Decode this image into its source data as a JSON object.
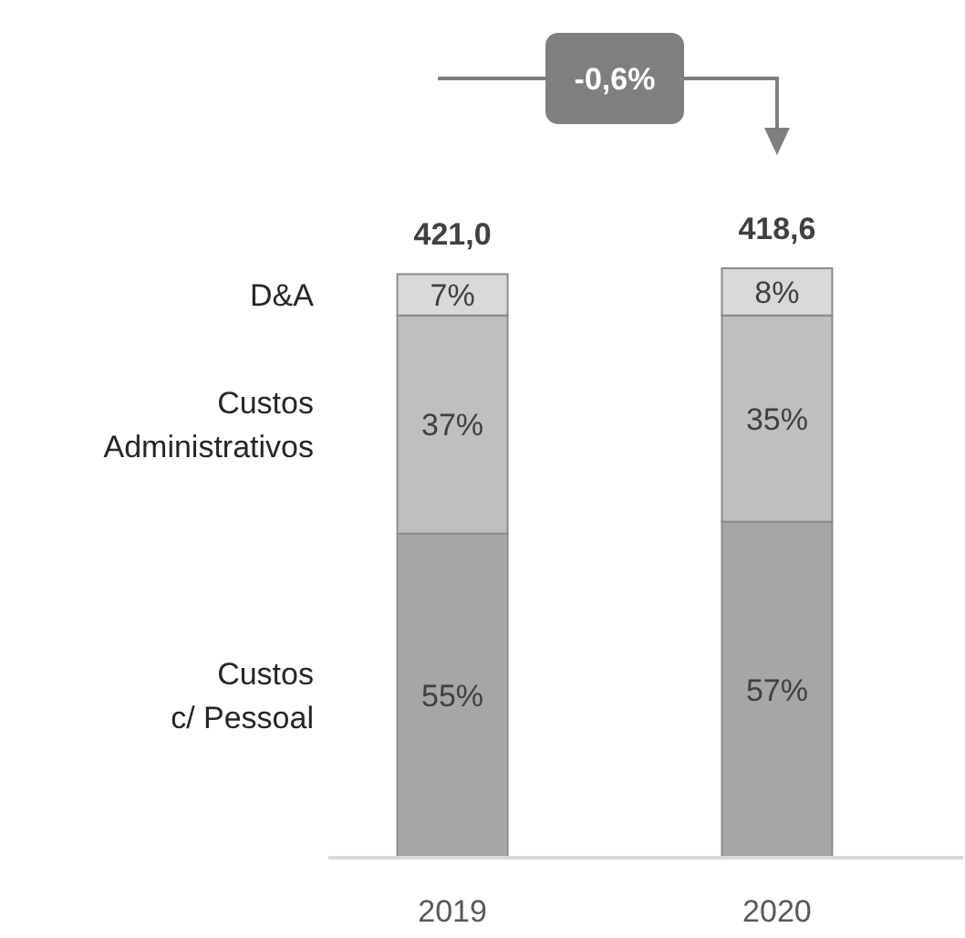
{
  "chart_data": {
    "type": "bar",
    "stacked": true,
    "categories": [
      "2019",
      "2020"
    ],
    "series": [
      {
        "name": "Custos c/ Pessoal",
        "color": "#a6a6a6",
        "values": [
          55,
          57
        ],
        "value_labels": [
          "55%",
          "57%"
        ]
      },
      {
        "name": "Custos Administrativos",
        "color": "#bfbfbf",
        "values": [
          37,
          35
        ],
        "value_labels": [
          "37%",
          "35%"
        ]
      },
      {
        "name": "D&A",
        "color": "#d9d9d9",
        "values": [
          7,
          8
        ],
        "value_labels": [
          "7%",
          "8%"
        ]
      }
    ],
    "annotations": [
      "-0,6%",
      {
        "text": "421,0",
        "x": "2019",
        "y": 99
      },
      {
        "text": "418,6",
        "x": "2020",
        "y": 100
      }
    ]
  }
}
